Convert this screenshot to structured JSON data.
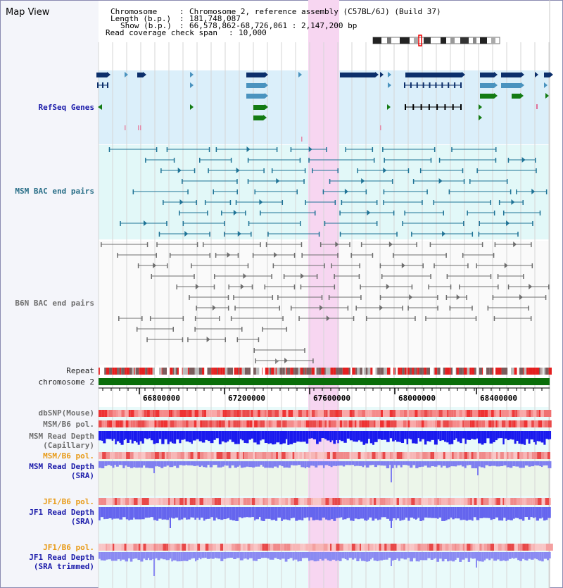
{
  "app": {
    "title": "Map View"
  },
  "header": {
    "chromosome_label": "Chromosome",
    "chromosome_value": "Chromosome 2, reference assembly (C57BL/6J) (Build 37)",
    "length_label": "Length (b.p.)",
    "length_value": "181,748,087",
    "show_label": "Show (b.p.)",
    "show_value": "66,578,862-68,726,061 : 2,147,200 bp",
    "coverage_label": "Read coverage check span",
    "coverage_value": "10,000",
    "separator": ":"
  },
  "tracks": {
    "refseq": "RefSeq Genes",
    "msm_bac": "MSM BAC end pairs",
    "b6n_bac": "B6N BAC end pairs",
    "repeat": "Repeat",
    "chromosome": "chromosome 2",
    "dbsnp": "dbSNP(Mouse)",
    "msm_b6_pol_1": "MSM/B6 pol.",
    "msm_depth_cap_1": "MSM Read Depth",
    "msm_depth_cap_2": "(Capillary)",
    "msm_b6_pol_2": "MSM/B6 pol.",
    "msm_depth_sra_1": "MSM Read Depth",
    "msm_depth_sra_2": "(SRA)",
    "jf1_b6_pol_1": "JF1/B6 pol.",
    "jf1_depth_sra_1": "JF1 Read Depth",
    "jf1_depth_sra_2": "(SRA)",
    "jf1_b6_pol_2": "JF1/B6 pol.",
    "jf1_depth_trim_1": "JF1 Read Depth",
    "jf1_depth_trim_2": "(SRA trimmed)"
  },
  "axis": {
    "ticks": [
      "66800000",
      "67200000",
      "67600000",
      "68000000",
      "68400000"
    ]
  },
  "colors": {
    "highlight": "#f7d6f1",
    "refseq_bg": "#dbeffa",
    "msm_bg": "#e2f8f8",
    "chromosome_bar": "#0a6e0a",
    "gene_dark": "#0c2f6b",
    "gene_mid": "#4a93bf",
    "gene_green": "#137b13",
    "msm_line": "#1f7396",
    "b6n_line": "#6e6e6e",
    "depth_blue": "#1a1aee",
    "depth_light": "#7f7ff0"
  }
}
